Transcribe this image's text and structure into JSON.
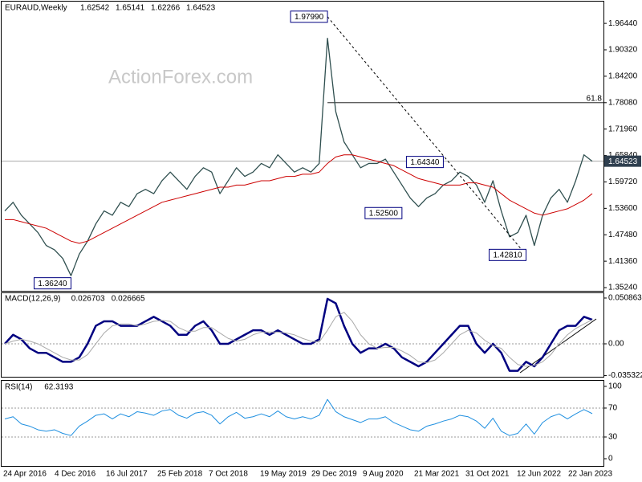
{
  "header": {
    "symbol": "EURAUD,Weekly",
    "ohlc": [
      "1.62542",
      "1.65141",
      "1.62266",
      "1.64523"
    ]
  },
  "watermark": "ActionForex.com",
  "x_labels": [
    "24 Apr 2016",
    "4 Dec 2016",
    "16 Jul 2017",
    "25 Feb 2018",
    "7 Oct 2018",
    "19 May 2019",
    "29 Dec 2019",
    "9 Aug 2020",
    "21 Mar 2021",
    "31 Oct 2021",
    "12 Jun 2022",
    "22 Jan 2023"
  ],
  "chart_data": [
    {
      "type": "line",
      "panel": "price",
      "ylim": [
        1.345,
        2.013
      ],
      "yticks": [
        {
          "value": 1.9644,
          "label": "1.96440"
        },
        {
          "value": 1.9032,
          "label": "1.90320"
        },
        {
          "value": 1.842,
          "label": "1.84200"
        },
        {
          "value": 1.7808,
          "label": "1.78080"
        },
        {
          "value": 1.7196,
          "label": "1.71960"
        },
        {
          "value": 1.6584,
          "label": "1.65840"
        },
        {
          "value": 1.5972,
          "label": "1.59720"
        },
        {
          "value": 1.536,
          "label": "1.53600"
        },
        {
          "value": 1.4748,
          "label": "1.47480"
        },
        {
          "value": 1.4136,
          "label": "1.41360"
        },
        {
          "value": 1.3524,
          "label": "1.35240"
        }
      ],
      "series": [
        {
          "name": "EURAUD",
          "color": "#2f4f4f",
          "values": [
            1.53,
            1.55,
            1.52,
            1.5,
            1.48,
            1.45,
            1.44,
            1.42,
            1.38,
            1.43,
            1.46,
            1.5,
            1.53,
            1.52,
            1.55,
            1.54,
            1.57,
            1.58,
            1.57,
            1.6,
            1.62,
            1.6,
            1.58,
            1.61,
            1.63,
            1.62,
            1.57,
            1.6,
            1.63,
            1.61,
            1.62,
            1.64,
            1.63,
            1.66,
            1.64,
            1.62,
            1.63,
            1.62,
            1.64,
            1.93,
            1.76,
            1.69,
            1.66,
            1.63,
            1.64,
            1.64,
            1.65,
            1.62,
            1.59,
            1.56,
            1.54,
            1.56,
            1.57,
            1.59,
            1.6,
            1.62,
            1.61,
            1.59,
            1.55,
            1.6,
            1.53,
            1.47,
            1.48,
            1.52,
            1.45,
            1.52,
            1.56,
            1.58,
            1.55,
            1.6,
            1.66,
            1.645
          ]
        },
        {
          "name": "MA",
          "color": "#cc0000",
          "values": [
            1.51,
            1.51,
            1.505,
            1.5,
            1.495,
            1.49,
            1.48,
            1.47,
            1.46,
            1.455,
            1.46,
            1.47,
            1.48,
            1.49,
            1.5,
            1.51,
            1.52,
            1.53,
            1.54,
            1.55,
            1.555,
            1.56,
            1.565,
            1.57,
            1.575,
            1.58,
            1.585,
            1.585,
            1.59,
            1.59,
            1.595,
            1.6,
            1.6,
            1.605,
            1.61,
            1.61,
            1.615,
            1.615,
            1.62,
            1.64,
            1.655,
            1.66,
            1.66,
            1.655,
            1.65,
            1.645,
            1.64,
            1.635,
            1.625,
            1.615,
            1.605,
            1.6,
            1.595,
            1.59,
            1.59,
            1.59,
            1.595,
            1.595,
            1.59,
            1.585,
            1.57,
            1.555,
            1.545,
            1.535,
            1.525,
            1.52,
            1.525,
            1.53,
            1.535,
            1.545,
            1.555,
            1.57
          ]
        }
      ],
      "annotations": [
        {
          "x": 39,
          "value": 1.9799,
          "label": "1.97990"
        },
        {
          "x": 53,
          "value": 1.6434,
          "label": "1.64340"
        },
        {
          "x": 48,
          "value": 1.525,
          "label": "1.52500"
        },
        {
          "x": 63,
          "value": 1.4281,
          "label": "1.42810"
        },
        {
          "x": 8,
          "value": 1.3624,
          "label": "1.36240"
        }
      ],
      "fib": {
        "level": 61.8,
        "price": 1.7808,
        "x": 39
      },
      "current_price": {
        "value": 1.64523,
        "label": "1.64523"
      }
    },
    {
      "type": "line",
      "panel": "macd",
      "title": "MACD(12,26,9)",
      "readout": [
        "0.026703",
        "0.026665"
      ],
      "ylim": [
        -0.0357,
        0.0553
      ],
      "yticks": [
        0.050863,
        {
          "value": 0,
          "label": "0.00"
        },
        -0.035322
      ],
      "series": [
        {
          "name": "MACD",
          "color": "#000080",
          "values": [
            0.0,
            0.01,
            0.005,
            -0.005,
            -0.01,
            -0.01,
            -0.015,
            -0.02,
            -0.02,
            -0.015,
            0.0,
            0.02,
            0.025,
            0.025,
            0.02,
            0.02,
            0.02,
            0.025,
            0.03,
            0.025,
            0.02,
            0.01,
            0.01,
            0.02,
            0.025,
            0.015,
            0.0,
            0.0,
            0.005,
            0.01,
            0.015,
            0.015,
            0.01,
            0.015,
            0.01,
            0.005,
            0.0,
            0.0,
            0.005,
            0.05,
            0.045,
            0.02,
            0.0,
            -0.01,
            -0.005,
            -0.005,
            0.0,
            -0.005,
            -0.015,
            -0.02,
            -0.025,
            -0.02,
            -0.01,
            0.0,
            0.01,
            0.02,
            0.02,
            0.0,
            -0.01,
            0.0,
            -0.01,
            -0.03,
            -0.03,
            -0.02,
            -0.025,
            -0.015,
            0.0,
            0.015,
            0.02,
            0.02,
            0.03,
            0.026703
          ]
        },
        {
          "name": "Signal",
          "color": "#a9a9a9",
          "values": [
            0.0,
            0.003,
            0.005,
            0.003,
            0.0,
            -0.005,
            -0.01,
            -0.015,
            -0.018,
            -0.018,
            -0.012,
            0.0,
            0.012,
            0.02,
            0.022,
            0.022,
            0.02,
            0.022,
            0.025,
            0.026,
            0.025,
            0.018,
            0.014,
            0.014,
            0.018,
            0.018,
            0.012,
            0.006,
            0.003,
            0.005,
            0.01,
            0.013,
            0.013,
            0.013,
            0.012,
            0.01,
            0.006,
            0.003,
            0.002,
            0.015,
            0.03,
            0.035,
            0.025,
            0.01,
            0.0,
            -0.005,
            -0.004,
            -0.004,
            -0.008,
            -0.013,
            -0.02,
            -0.021,
            -0.018,
            -0.01,
            0.0,
            0.01,
            0.015,
            0.012,
            0.004,
            -0.002,
            -0.005,
            -0.015,
            -0.023,
            -0.025,
            -0.024,
            -0.02,
            -0.012,
            0.0,
            0.01,
            0.017,
            0.022,
            0.026665
          ]
        }
      ]
    },
    {
      "type": "line",
      "panel": "rsi",
      "title": "RSI(14)",
      "readout": "62.3193",
      "ylim": [
        -10,
        105.5
      ],
      "yticks": [
        100,
        70,
        30,
        0
      ],
      "levels": [
        70,
        30
      ],
      "series": [
        {
          "name": "RSI",
          "color": "#1e8fe0",
          "values": [
            55,
            58,
            48,
            45,
            40,
            38,
            40,
            35,
            32,
            45,
            52,
            60,
            62,
            55,
            62,
            58,
            65,
            63,
            60,
            66,
            68,
            60,
            56,
            63,
            65,
            60,
            48,
            58,
            64,
            56,
            58,
            62,
            58,
            66,
            58,
            55,
            58,
            55,
            60,
            82,
            65,
            58,
            54,
            50,
            55,
            55,
            58,
            50,
            45,
            40,
            38,
            45,
            48,
            52,
            55,
            60,
            58,
            52,
            42,
            56,
            38,
            32,
            35,
            48,
            34,
            50,
            58,
            62,
            55,
            62,
            68,
            62.3193
          ]
        }
      ]
    }
  ]
}
